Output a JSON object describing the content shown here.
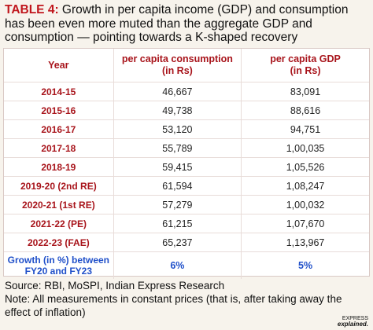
{
  "title": {
    "label": "TABLE 4:",
    "text": " Growth in per capita income (GDP) and consumption has been even more muted than the aggregate GDP and consumption — pointing towards a K-shaped recovery"
  },
  "table": {
    "headers": [
      "Year",
      "per capita consumption\n(in Rs)",
      "per capita GDP\n(in Rs)"
    ],
    "rows": [
      {
        "year": "2014-15",
        "consumption": "46,667",
        "gdp": "83,091"
      },
      {
        "year": "2015-16",
        "consumption": "49,738",
        "gdp": "88,616"
      },
      {
        "year": "2016-17",
        "consumption": "53,120",
        "gdp": "94,751"
      },
      {
        "year": "2017-18",
        "consumption": "55,789",
        "gdp": "1,00,035"
      },
      {
        "year": "2018-19",
        "consumption": "59,415",
        "gdp": "1,05,526"
      },
      {
        "year": "2019-20 (2nd RE)",
        "consumption": "61,594",
        "gdp": "1,08,247"
      },
      {
        "year": "2020-21 (1st RE)",
        "consumption": "57,279",
        "gdp": "1,00,032"
      },
      {
        "year": "2021-22 (PE)",
        "consumption": "61,215",
        "gdp": "1,07,670"
      },
      {
        "year": "2022-23 (FAE)",
        "consumption": "65,237",
        "gdp": "1,13,967"
      }
    ],
    "growth": {
      "label": "Growth (in %) between\nFY20 and FY23",
      "consumption": "6%",
      "gdp": "5%"
    }
  },
  "source": "Source: RBI, MoSPI, Indian Express Research",
  "note": "Note: All measurements in constant prices (that is, after taking away the effect of inflation)",
  "logo": {
    "top": "EXPRESS",
    "brand": "explained."
  },
  "colors": {
    "title_label": "#c0161c",
    "header": "#a8141b",
    "growth": "#1f4fc9",
    "background": "#f7f3ec"
  }
}
